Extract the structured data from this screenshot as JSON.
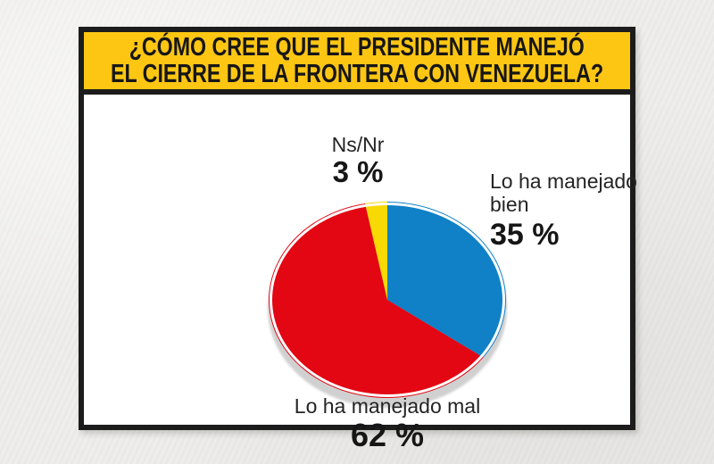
{
  "header": {
    "title_line1": "¿CÓMO CREE QUE EL PRESIDENTE MANEJÓ",
    "title_line2": "EL CIERRE DE LA FRONTERA CON VENEZUELA?"
  },
  "chart_data": {
    "type": "pie",
    "title": "¿CÓMO CREE QUE EL PRESIDENTE MANEJÓ EL CIERRE DE LA FRONTERA CON VENEZUELA?",
    "start_angle_deg": 0,
    "direction": "clockwise",
    "slices": [
      {
        "id": "bien",
        "label": "Lo ha manejado bien",
        "value": 35,
        "display": "35 %",
        "color": "#1081c6"
      },
      {
        "id": "mal",
        "label": "Lo ha manejado mal",
        "value": 62,
        "display": "62 %",
        "color": "#e30613"
      },
      {
        "id": "nsnr",
        "label": "Ns/Nr",
        "value": 3,
        "display": "3 %",
        "color": "#f9d903"
      }
    ],
    "legend_position": "none",
    "labels_on_chart": true
  },
  "labels": {
    "nsnr": {
      "name": "Ns/Nr",
      "pct": "3 %"
    },
    "bien": {
      "line1": "Lo ha manejado",
      "line2": "bien",
      "pct": "35 %"
    },
    "mal": {
      "text": "Lo ha manejado mal",
      "pct": "62 %"
    }
  },
  "colors": {
    "header_bg": "#fcc613",
    "frame_border": "#1c1c1c",
    "blue": "#1081c6",
    "red": "#e30613",
    "yellow": "#f9d903",
    "pie_shadow": "#d0d0d0",
    "page_bg": "#edecea",
    "card_bg": "#ffffff",
    "text": "#1d1d1d"
  }
}
